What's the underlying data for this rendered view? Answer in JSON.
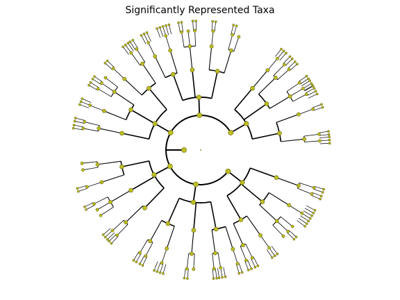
{
  "figure": {
    "title": "Significantly Represented Taxa"
  },
  "style": {
    "node_fill": "#bcbd22",
    "node_stroke": "#6b6b10",
    "branch_color": "#000000",
    "background": "#ffffff"
  },
  "tree": {
    "levels": 6,
    "phyla": [
      {
        "angle": 30,
        "span": 50,
        "classes": [
          {
            "offset": -18,
            "orders": [
              {
                "offset": -6,
                "fans": [
                  3,
                  2
                ]
              },
              {
                "offset": 8,
                "fans": [
                  2
                ]
              }
            ]
          },
          {
            "offset": 5,
            "orders": [
              {
                "offset": -4,
                "fans": [
                  4,
                  3,
                  2
                ]
              },
              {
                "offset": 9,
                "fans": [
                  2,
                  2
                ]
              }
            ]
          },
          {
            "offset": 20,
            "orders": [
              {
                "offset": 0,
                "fans": [
                  3
                ]
              }
            ]
          }
        ]
      },
      {
        "angle": 92,
        "span": 42,
        "classes": [
          {
            "offset": -14,
            "orders": [
              {
                "offset": -5,
                "fans": [
                  1,
                  2
                ]
              },
              {
                "offset": 6,
                "fans": [
                  2
                ]
              }
            ]
          },
          {
            "offset": 4,
            "orders": [
              {
                "offset": 0,
                "fans": [
                  2,
                  1,
                  2
                ]
              }
            ]
          },
          {
            "offset": 18,
            "orders": [
              {
                "offset": -3,
                "fans": [
                  5
                ]
              },
              {
                "offset": 6,
                "fans": [
                  3
                ]
              }
            ]
          }
        ]
      },
      {
        "angle": 150,
        "span": 55,
        "classes": [
          {
            "offset": -20,
            "orders": [
              {
                "offset": -6,
                "fans": [
                  2,
                  3
                ]
              },
              {
                "offset": 7,
                "fans": [
                  2
                ]
              }
            ]
          },
          {
            "offset": 0,
            "orders": [
              {
                "offset": -4,
                "fans": [
                  1,
                  2,
                  2
                ]
              },
              {
                "offset": 8,
                "fans": [
                  3
                ]
              }
            ]
          },
          {
            "offset": 18,
            "orders": [
              {
                "offset": 0,
                "fans": [
                  2,
                  2
                ]
              }
            ]
          }
        ]
      },
      {
        "angle": 208,
        "span": 45,
        "classes": [
          {
            "offset": -16,
            "orders": [
              {
                "offset": -4,
                "fans": [
                  1,
                  1
                ]
              },
              {
                "offset": 6,
                "fans": [
                  2
                ]
              }
            ]
          },
          {
            "offset": 2,
            "orders": [
              {
                "offset": 0,
                "fans": [
                  2,
                  1,
                  1
                ]
              }
            ]
          },
          {
            "offset": 18,
            "orders": [
              {
                "offset": -2,
                "fans": [
                  3,
                  2
                ]
              }
            ]
          }
        ]
      },
      {
        "angle": 262,
        "span": 48,
        "classes": [
          {
            "offset": -16,
            "orders": [
              {
                "offset": -5,
                "fans": [
                  2,
                  2
                ]
              },
              {
                "offset": 5,
                "fans": [
                  4
                ]
              }
            ]
          },
          {
            "offset": 3,
            "orders": [
              {
                "offset": 0,
                "fans": [
                  2,
                  1
                ]
              }
            ]
          },
          {
            "offset": 19,
            "orders": [
              {
                "offset": -3,
                "fans": [
                  2,
                  3
                ]
              },
              {
                "offset": 7,
                "fans": [
                  2
                ]
              }
            ]
          }
        ]
      },
      {
        "angle": 322,
        "span": 58,
        "classes": [
          {
            "offset": -22,
            "orders": [
              {
                "offset": -6,
                "fans": [
                  2,
                  2
                ]
              },
              {
                "offset": 5,
                "fans": [
                  3
                ]
              }
            ]
          },
          {
            "offset": -2,
            "orders": [
              {
                "offset": -3,
                "fans": [
                  1,
                  2,
                  1
                ]
              },
              {
                "offset": 8,
                "fans": [
                  7
                ]
              }
            ]
          },
          {
            "offset": 18,
            "orders": [
              {
                "offset": 0,
                "fans": [
                  2,
                  2
                ]
              }
            ]
          }
        ]
      }
    ]
  }
}
